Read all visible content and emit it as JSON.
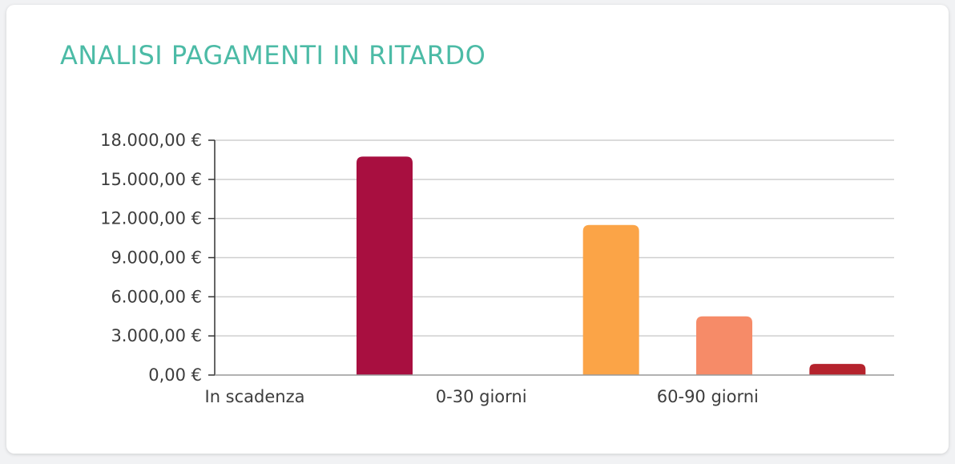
{
  "chart_data": {
    "type": "bar",
    "title": "ANALISI PAGAMENTI IN RITARDO",
    "categories": [
      "In scadenza",
      "",
      "0-30 giorni",
      "",
      "60-90 giorni",
      ""
    ],
    "values": [
      0,
      16750,
      0,
      11500,
      4500,
      850
    ],
    "colors": [
      "#a80f40",
      "#a80f40",
      "#fba447",
      "#fba447",
      "#f68b68",
      "#b5232d"
    ],
    "ylim": [
      0,
      18000
    ],
    "yticks": [
      0,
      3000,
      6000,
      9000,
      12000,
      15000,
      18000
    ],
    "ytick_labels": [
      "0,00 €",
      "3.000,00 €",
      "6.000,00 €",
      "9.000,00 €",
      "12.000,00 €",
      "15.000,00 €",
      "18.000,00 €"
    ],
    "grid": true,
    "legend": "none"
  }
}
